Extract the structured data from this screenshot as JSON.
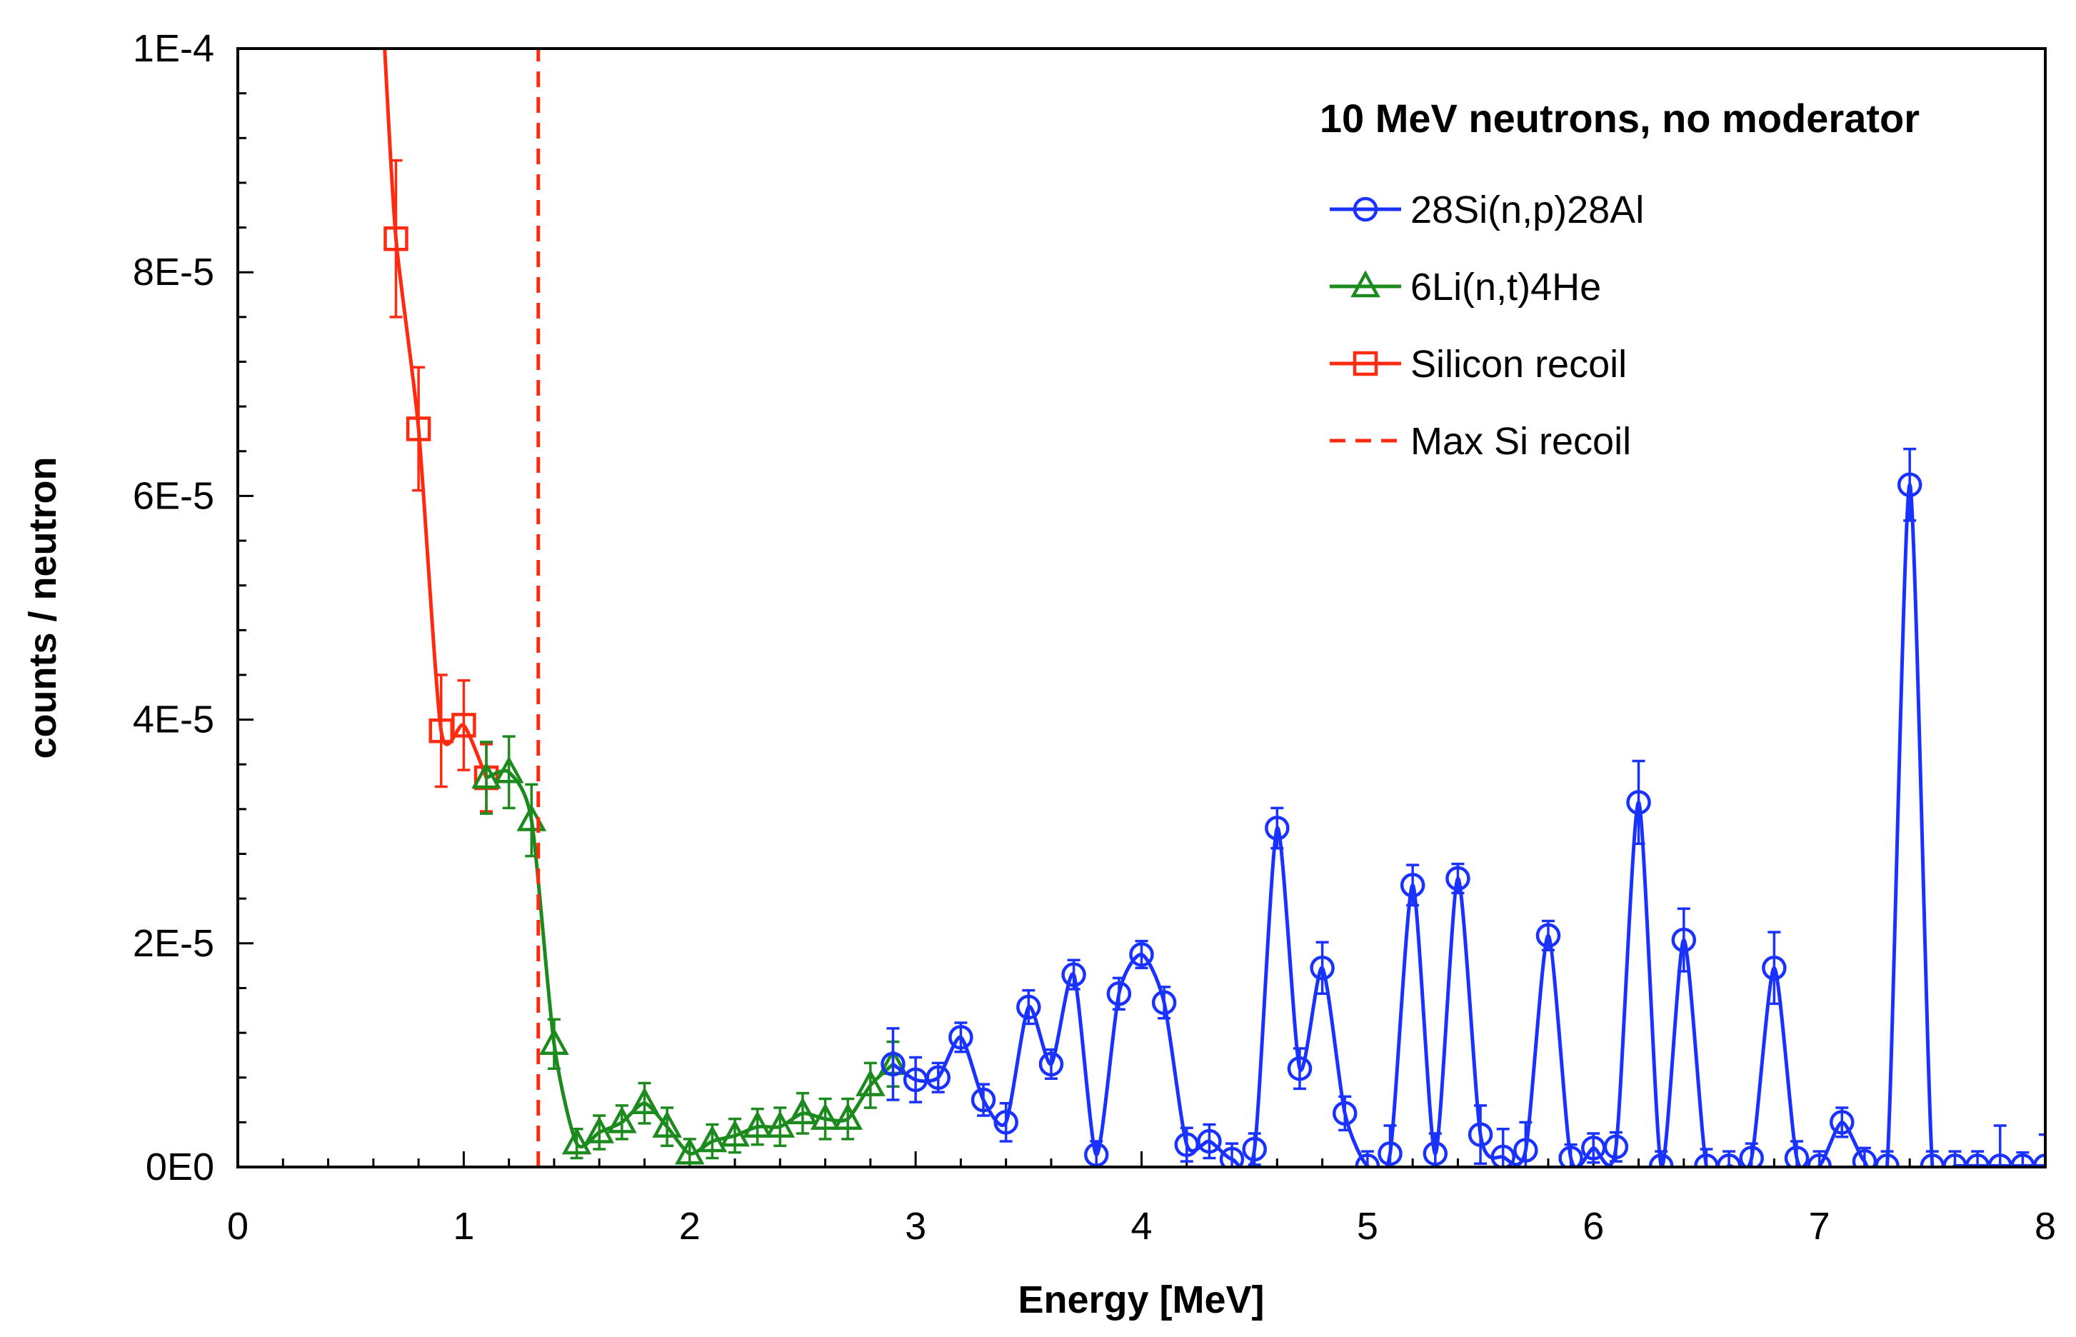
{
  "chart_data": {
    "type": "line",
    "title": "10 MeV neutrons, no moderator",
    "xlabel": "Energy [MeV]",
    "ylabel": "counts / neutron",
    "xlim": [
      0,
      8
    ],
    "ylim": [
      0,
      0.0001
    ],
    "x_ticks": [
      "0",
      "1",
      "2",
      "3",
      "4",
      "5",
      "6",
      "7",
      "8"
    ],
    "y_ticks": [
      "0E0",
      "2E-5",
      "4E-5",
      "6E-5",
      "8E-5",
      "1E-4"
    ],
    "grid": false,
    "legend_position": "top-right",
    "series": [
      {
        "name": "28Si(n,p)28Al",
        "color": "#1a32ff",
        "marker": "circle",
        "x": [
          2.9,
          3.0,
          3.1,
          3.2,
          3.3,
          3.4,
          3.5,
          3.6,
          3.7,
          3.8,
          3.9,
          4.0,
          4.1,
          4.2,
          4.3,
          4.4,
          4.5,
          4.6,
          4.7,
          4.8,
          4.9,
          5.0,
          5.1,
          5.2,
          5.3,
          5.4,
          5.5,
          5.6,
          5.7,
          5.8,
          5.9,
          6.0,
          6.1,
          6.2,
          6.3,
          6.4,
          6.5,
          6.6,
          6.7,
          6.8,
          6.9,
          7.0,
          7.1,
          7.2,
          7.3,
          7.4,
          7.5,
          7.6,
          7.7,
          7.8,
          7.9,
          8.0
        ],
        "y": [
          9.2e-06,
          7.8e-06,
          8e-06,
          1.16e-05,
          6e-06,
          4e-06,
          1.43e-05,
          9.2e-06,
          1.72e-05,
          1.1e-06,
          1.55e-05,
          1.9e-05,
          1.47e-05,
          2e-06,
          2.3e-06,
          7e-07,
          1.6e-06,
          3.03e-05,
          8.8e-06,
          1.78e-05,
          4.8e-06,
          1e-07,
          1.2e-06,
          2.52e-05,
          1.2e-06,
          2.58e-05,
          2.9e-06,
          9e-07,
          1.5e-06,
          2.07e-05,
          8e-07,
          1.7e-06,
          1.8e-06,
          3.26e-05,
          1e-07,
          2.03e-05,
          1e-07,
          1e-07,
          8e-07,
          1.78e-05,
          8e-07,
          1e-07,
          4e-06,
          5e-07,
          1e-07,
          6.1e-05,
          1e-07,
          1e-07,
          1e-07,
          1e-07,
          1e-07,
          1e-07
        ],
        "err": [
          3.2e-06,
          2e-06,
          1.3e-06,
          1.3e-06,
          1.4e-06,
          1.7e-06,
          1.5e-06,
          1.3e-06,
          1.3e-06,
          1.2e-06,
          1.4e-06,
          1.2e-06,
          1.4e-06,
          1.5e-06,
          1.5e-06,
          1.4e-06,
          1.4e-06,
          1.8e-06,
          1.8e-06,
          2.3e-06,
          1.5e-06,
          1.3e-06,
          2.5e-06,
          1.8e-06,
          1.8e-06,
          1.3e-06,
          2.6e-06,
          2.5e-06,
          2.5e-06,
          1.3e-06,
          1.2e-06,
          1.3e-06,
          1.3e-06,
          3.7e-06,
          1.3e-06,
          2.8e-06,
          1.5e-06,
          1.3e-06,
          1.3e-06,
          3.2e-06,
          1.5e-06,
          1.3e-06,
          1.3e-06,
          1.2e-06,
          1.3e-06,
          3.2e-06,
          1.3e-06,
          1.3e-06,
          1.3e-06,
          3.6e-06,
          1.2e-06,
          2.8e-06
        ]
      },
      {
        "name": "6Li(n,t)4He",
        "color": "#1d8a1d",
        "marker": "triangle",
        "x": [
          1.1,
          1.2,
          1.3,
          1.4,
          1.5,
          1.6,
          1.7,
          1.8,
          1.9,
          2.0,
          2.1,
          2.2,
          2.3,
          2.4,
          2.5,
          2.6,
          2.7,
          2.8,
          2.9
        ],
        "y": [
          3.48e-05,
          3.53e-05,
          3.1e-05,
          1.1e-05,
          2.1e-06,
          3.1e-06,
          4e-06,
          5.7e-06,
          3.6e-06,
          1.2e-06,
          2.3e-06,
          2.8e-06,
          3.6e-06,
          3.6e-06,
          4.8e-06,
          4.3e-06,
          4.3e-06,
          7.3e-06,
          9.2e-06
        ],
        "err": [
          3.2e-06,
          3.2e-06,
          3.2e-06,
          2.2e-06,
          1.3e-06,
          1.5e-06,
          1.5e-06,
          1.8e-06,
          1.7e-06,
          1.3e-06,
          1.5e-06,
          1.5e-06,
          1.6e-06,
          1.7e-06,
          1.8e-06,
          1.8e-06,
          1.8e-06,
          2e-06,
          2e-06
        ]
      },
      {
        "name": "Silicon recoil",
        "color": "#ff2a10",
        "marker": "square",
        "x": [
          0.65,
          0.7,
          0.8,
          0.9,
          1.0,
          1.1
        ],
        "y": [
          0.0001,
          8.3e-05,
          6.6e-05,
          3.9e-05,
          3.95e-05,
          3.48e-05
        ],
        "err": [
          0,
          7e-06,
          5.5e-06,
          5e-06,
          4e-06,
          3e-06
        ],
        "marker_from_index": 1
      },
      {
        "name": "Max Si recoil",
        "color": "#ff2a10",
        "style": "dashed",
        "x": [
          1.33,
          1.33
        ],
        "y": [
          0,
          0.0001
        ]
      }
    ]
  }
}
